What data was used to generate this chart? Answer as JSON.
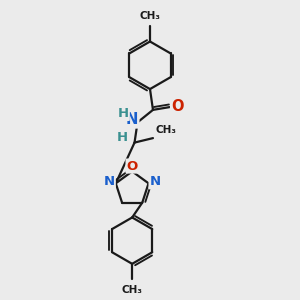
{
  "background_color": "#ebebeb",
  "bond_color": "#1a1a1a",
  "bond_width": 1.6,
  "atom_colors": {
    "N": "#1a5fcc",
    "O": "#cc2200",
    "H": "#3a9090",
    "C": "#1a1a1a"
  },
  "figsize": [
    3.0,
    3.0
  ],
  "dpi": 100,
  "xlim": [
    0,
    10
  ],
  "ylim": [
    0,
    10
  ]
}
